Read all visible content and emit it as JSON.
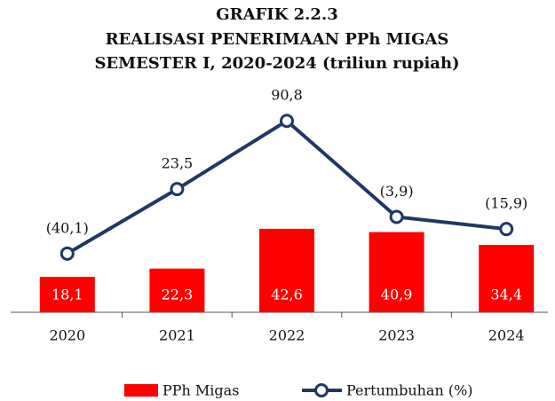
{
  "chart_data": {
    "type": "combo",
    "title": [
      "GRAFIK  2.2.3",
      "REALISASI PENERIMAAN PPh MIGAS",
      "SEMESTER I, 2020-2024 (triliun rupiah)"
    ],
    "categories": [
      "2020",
      "2021",
      "2022",
      "2023",
      "2024"
    ],
    "series": [
      {
        "name": "PPh Migas",
        "type": "bar",
        "color": "#ff0000",
        "values": [
          18.1,
          22.3,
          42.6,
          40.9,
          34.4
        ],
        "value_labels": [
          "18,1",
          "22,3",
          "42,6",
          "40,9",
          "34,4"
        ]
      },
      {
        "name": "Pertumbuhan (%)",
        "type": "line",
        "axis": "y2",
        "color": "#1f3864",
        "values": [
          -40.1,
          23.5,
          90.8,
          -3.9,
          -15.9
        ],
        "value_labels": [
          "(40,1)",
          "23,5",
          "90,8",
          "(3,9)",
          "(15,9)"
        ]
      }
    ],
    "ylim": [
      0,
      105
    ],
    "y2lim": [
      -98,
      105
    ],
    "grid": false,
    "legend": "bottom"
  }
}
